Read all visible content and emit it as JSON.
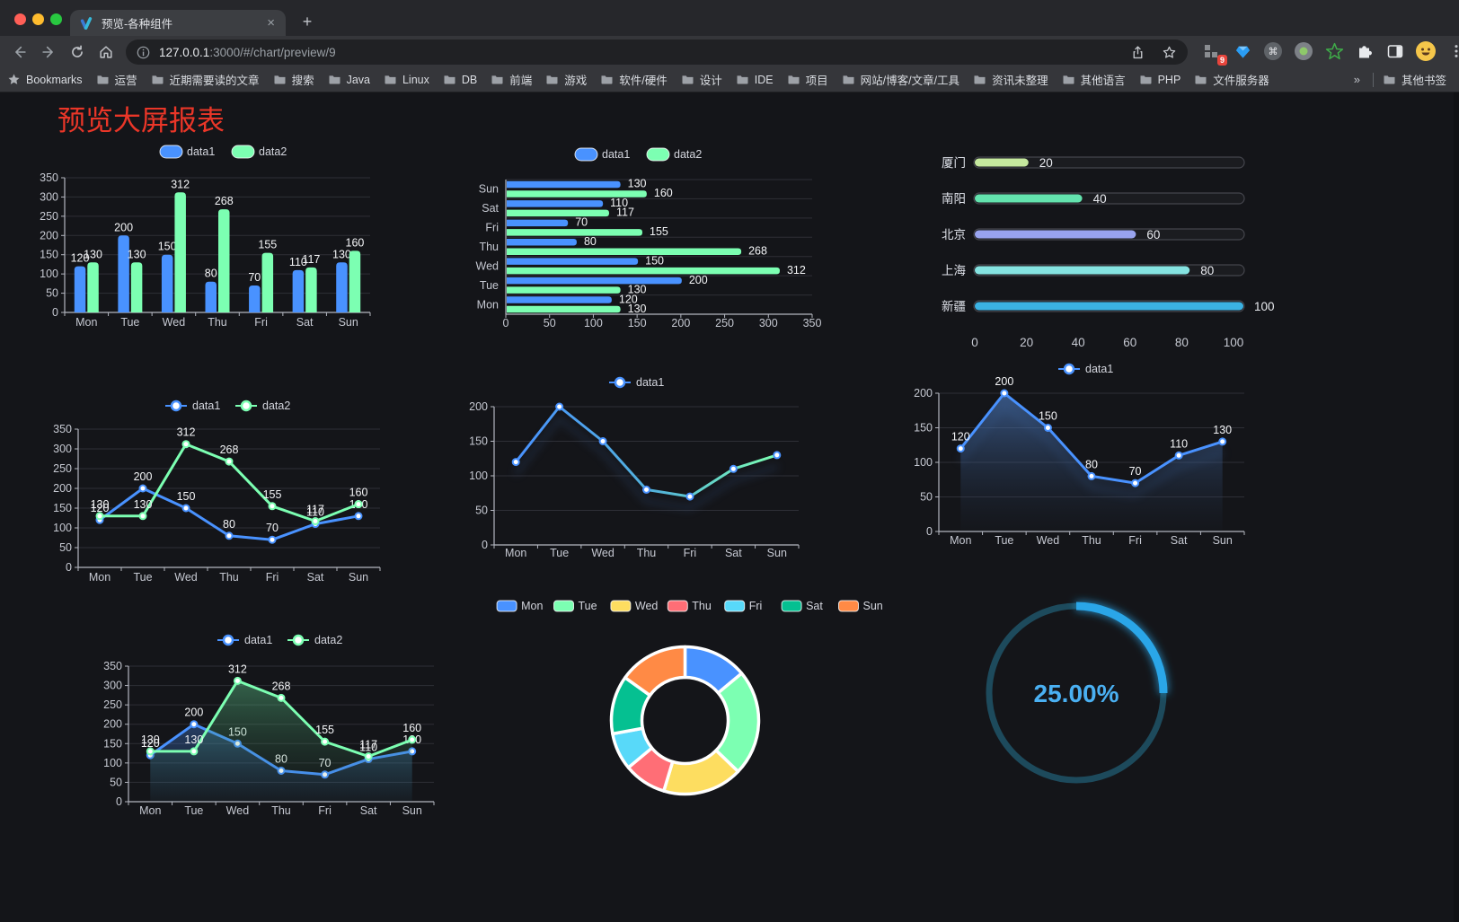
{
  "browser": {
    "traffic_lights": [
      "#ff5f57",
      "#febc2e",
      "#28c840"
    ],
    "tab": {
      "title": "预览-各种组件",
      "close_label": "×",
      "new_tab_label": "+"
    },
    "toolbar": {
      "url_host": "127.0.0.1",
      "url_rest": ":3000/#/chart/preview/9",
      "extension_badge": "9"
    },
    "bookmarks": {
      "label": "Bookmarks",
      "items": [
        "运营",
        "近期需要读的文章",
        "搜索",
        "Java",
        "Linux",
        "DB",
        "前端",
        "游戏",
        "软件/硬件",
        "设计",
        "IDE",
        "项目",
        "网站/博客/文章/工具",
        "资讯未整理",
        "其他语言",
        "PHP",
        "文件服务器"
      ],
      "overflow": "»",
      "other_bookmarks": "其他书签"
    }
  },
  "page": {
    "title": "预览大屏报表"
  },
  "chart_data": [
    {
      "id": "bar-grouped",
      "type": "bar",
      "orientation": "vertical",
      "categories": [
        "Mon",
        "Tue",
        "Wed",
        "Thu",
        "Fri",
        "Sat",
        "Sun"
      ],
      "series": [
        {
          "name": "data1",
          "color": "#4992ff",
          "values": [
            120,
            200,
            150,
            80,
            70,
            110,
            130
          ]
        },
        {
          "name": "data2",
          "color": "#7cffb2",
          "values": [
            130,
            130,
            312,
            268,
            155,
            117,
            160
          ]
        }
      ],
      "ylim": [
        0,
        350
      ],
      "yticks": [
        0,
        50,
        100,
        150,
        200,
        250,
        300,
        350
      ],
      "grid": true,
      "legend_position": "top",
      "value_labels": true
    },
    {
      "id": "bar-horizontal",
      "type": "bar",
      "orientation": "horizontal",
      "categories": [
        "Mon",
        "Tue",
        "Wed",
        "Thu",
        "Fri",
        "Sat",
        "Sun"
      ],
      "categories_displayed_top_to_bottom": [
        "Sun",
        "Sat",
        "Fri",
        "Thu",
        "Wed",
        "Tue",
        "Mon"
      ],
      "series": [
        {
          "name": "data1",
          "color": "#4992ff",
          "values": [
            120,
            200,
            150,
            80,
            70,
            110,
            130
          ]
        },
        {
          "name": "data2",
          "color": "#7cffb2",
          "values": [
            130,
            130,
            312,
            268,
            155,
            117,
            160
          ]
        }
      ],
      "xlim": [
        0,
        350
      ],
      "xticks": [
        0,
        50,
        100,
        150,
        200,
        250,
        300,
        350
      ],
      "grid": true,
      "legend_position": "top",
      "value_labels": true
    },
    {
      "id": "capsule-bars",
      "type": "bar",
      "orientation": "horizontal",
      "categories": [
        "厦门",
        "南阳",
        "北京",
        "上海",
        "新疆"
      ],
      "values": [
        20,
        40,
        60,
        80,
        100
      ],
      "colors": [
        "#c5e89e",
        "#63e3ae",
        "#98a3ef",
        "#85e3e1",
        "#3bb2e3"
      ],
      "xlim": [
        0,
        100
      ],
      "xticks": [
        0,
        20,
        40,
        60,
        80,
        100
      ],
      "track_border_color": "#44454c",
      "value_labels": true
    },
    {
      "id": "line-basic",
      "type": "line",
      "categories": [
        "Mon",
        "Tue",
        "Wed",
        "Thu",
        "Fri",
        "Sat",
        "Sun"
      ],
      "series": [
        {
          "name": "data1",
          "color": "#4992ff",
          "values": [
            120,
            200,
            150,
            80,
            70,
            110,
            130
          ]
        },
        {
          "name": "data2",
          "color": "#7cffb2",
          "values": [
            130,
            130,
            312,
            268,
            155,
            117,
            160
          ]
        }
      ],
      "ylim": [
        0,
        350
      ],
      "yticks": [
        0,
        50,
        100,
        150,
        200,
        250,
        300,
        350
      ],
      "grid": true,
      "legend_position": "top",
      "value_labels": true
    },
    {
      "id": "line-gradient",
      "type": "line",
      "categories": [
        "Mon",
        "Tue",
        "Wed",
        "Thu",
        "Fri",
        "Sat",
        "Sun"
      ],
      "series": [
        {
          "name": "data1",
          "gradient": [
            "#4992ff",
            "#7cffb2"
          ],
          "color": "#4992ff",
          "values": [
            120,
            200,
            150,
            80,
            70,
            110,
            130
          ]
        }
      ],
      "ylim": [
        0,
        200
      ],
      "yticks": [
        0,
        50,
        100,
        150,
        200
      ],
      "grid": true,
      "legend_position": "top",
      "value_labels": false,
      "shadow": true
    },
    {
      "id": "area-single",
      "type": "area",
      "categories": [
        "Mon",
        "Tue",
        "Wed",
        "Thu",
        "Fri",
        "Sat",
        "Sun"
      ],
      "series": [
        {
          "name": "data1",
          "color": "#4992ff",
          "area_from": "rgba(86,140,220,0.55)",
          "area_to": "rgba(40,60,90,0.04)",
          "values": [
            120,
            200,
            150,
            80,
            70,
            110,
            130
          ]
        }
      ],
      "ylim": [
        0,
        200
      ],
      "yticks": [
        0,
        50,
        100,
        150,
        200
      ],
      "grid": true,
      "legend_position": "top",
      "value_labels": true,
      "shadow": true
    },
    {
      "id": "area-dual",
      "type": "area",
      "categories": [
        "Mon",
        "Tue",
        "Wed",
        "Thu",
        "Fri",
        "Sat",
        "Sun"
      ],
      "series": [
        {
          "name": "data1",
          "color": "#4992ff",
          "area_from": "rgba(73,146,255,0.32)",
          "area_to": "rgba(73,146,255,0.03)",
          "values": [
            120,
            200,
            150,
            80,
            70,
            110,
            130
          ]
        },
        {
          "name": "data2",
          "color": "#7cffb2",
          "area_from": "rgba(100,215,150,0.40)",
          "area_to": "rgba(40,90,60,0.04)",
          "values": [
            130,
            130,
            312,
            268,
            155,
            117,
            160
          ]
        }
      ],
      "ylim": [
        0,
        350
      ],
      "yticks": [
        0,
        50,
        100,
        150,
        200,
        250,
        300,
        350
      ],
      "grid": true,
      "legend_position": "top",
      "value_labels": true
    },
    {
      "id": "donut",
      "type": "pie",
      "categories": [
        "Mon",
        "Tue",
        "Wed",
        "Thu",
        "Fri",
        "Sat",
        "Sun"
      ],
      "values": [
        120,
        200,
        150,
        80,
        70,
        110,
        130
      ],
      "colors": [
        "#4992ff",
        "#7cffb2",
        "#fddd60",
        "#ff6e76",
        "#58d9f9",
        "#05c091",
        "#ff8a45"
      ],
      "legend_position": "top",
      "border_color": "#ffffff"
    },
    {
      "id": "progress-ring",
      "type": "gauge",
      "value": 25,
      "max": 100,
      "label": "25.00%",
      "color": "#2ba6e8",
      "track_color": "#1d4a5c",
      "text_color": "#4ab0f2"
    }
  ]
}
